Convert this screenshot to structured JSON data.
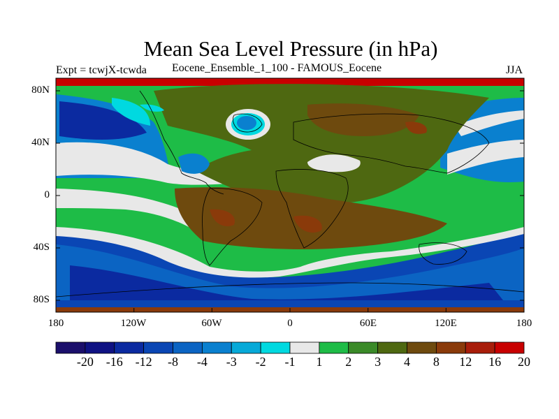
{
  "title": "Mean Sea Level Pressure (in hPa)",
  "left_label": "Expt = tcwjX-tcwda",
  "center_label": "Eocene_Ensemble_1_100 - FAMOUS_Eocene",
  "right_label": "JJA",
  "map": {
    "lat_labels": [
      "80N",
      "40N",
      "0",
      "40S",
      "80S"
    ],
    "lon_labels": [
      "180",
      "120W",
      "60W",
      "0",
      "60E",
      "120E",
      "180"
    ]
  },
  "colorbar": {
    "labels": [
      "-20",
      "-16",
      "-12",
      "-8",
      "-4",
      "-3",
      "-2",
      "-1",
      "1",
      "2",
      "3",
      "4",
      "8",
      "12",
      "16",
      "20"
    ],
    "colors": [
      "#1b0f6b",
      "#0f1283",
      "#0b2aa0",
      "#0a46b4",
      "#0b64c3",
      "#0a80cf",
      "#06a9d8",
      "#00d9e0",
      "#e8e8e8",
      "#1ebc47",
      "#3a8a28",
      "#4e6811",
      "#6e4a0e",
      "#8a3a0a",
      "#a81d0a",
      "#c80000"
    ]
  }
}
